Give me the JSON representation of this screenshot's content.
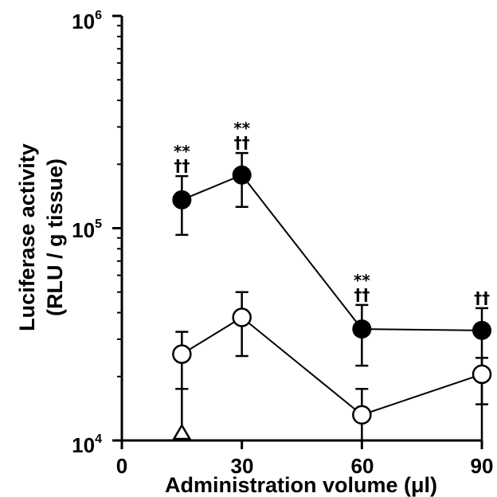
{
  "chart_data": {
    "type": "line",
    "title": "",
    "xlabel": "Administration volume (μl)",
    "ylabel_lines": [
      "Luciferase activity",
      "(RLU / g tissue)"
    ],
    "x_ticks": [
      "0",
      "30",
      "60",
      "90"
    ],
    "xlim": [
      0,
      90
    ],
    "y_scale": "log",
    "ylim": [
      10000,
      1000000
    ],
    "y_ticks": [
      {
        "value": 10000,
        "base": "10",
        "exp": "4"
      },
      {
        "value": 100000,
        "base": "10",
        "exp": "5"
      },
      {
        "value": 1000000,
        "base": "10",
        "exp": "6"
      }
    ],
    "grid": false,
    "legend": "none",
    "series": [
      {
        "marker": "filled-circle",
        "points": [
          {
            "x": 15,
            "y": 136000,
            "err_low": 93000,
            "err_high": 176000
          },
          {
            "x": 30,
            "y": 178000,
            "err_low": 126000,
            "err_high": 226000
          },
          {
            "x": 60,
            "y": 33500,
            "err_low": 22500,
            "err_high": 43500
          },
          {
            "x": 90,
            "y": 33000,
            "err_low": 0,
            "err_high": 42000
          }
        ]
      },
      {
        "marker": "open-circle",
        "points": [
          {
            "x": 15,
            "y": 25500,
            "err_low": 17500,
            "err_high": 32500
          },
          {
            "x": 30,
            "y": 38000,
            "err_low": 25000,
            "err_high": 50000
          },
          {
            "x": 60,
            "y": 13200,
            "err_low": 0,
            "err_high": 17500
          },
          {
            "x": 90,
            "y": 20500,
            "err_low": 14800,
            "err_high": 24500
          }
        ]
      },
      {
        "marker": "open-triangle",
        "points": [
          {
            "x": 15,
            "y": 10500,
            "err_low": 0,
            "err_high": 17500
          }
        ]
      }
    ],
    "annotations": [
      {
        "x": 15,
        "lines": [
          "**",
          "††"
        ]
      },
      {
        "x": 30,
        "lines": [
          "**",
          "††"
        ]
      },
      {
        "x": 60,
        "lines": [
          "**",
          "††"
        ]
      },
      {
        "x": 90,
        "lines": [
          "††"
        ]
      }
    ]
  }
}
